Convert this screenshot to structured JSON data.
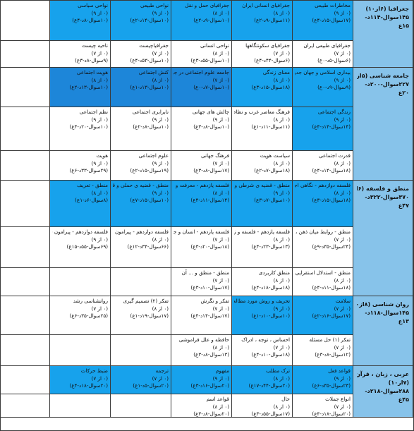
{
  "colors": {
    "highlight": "#17a2ec",
    "highlight_dark": "#1d86d9",
    "header": "#87c3ea",
    "grid_line": "#3a3a3a"
  },
  "headers": [
    {
      "lines": [
        "جغرافیا (۶از۱۰)",
        "۱۴۵سوال-۱۱۴د-",
        "۱۵ع"
      ]
    },
    {
      "lines": [
        "جامعه شناسی (۵از۱۰)",
        "۲۲۷سوال-۲۰۰د-",
        "۲۰ع"
      ]
    },
    {
      "lines": [
        "منطق و فلسفه (۶از۱۰)",
        "۳۷۰سوال-۳۲۲د-",
        "۴۷ع"
      ]
    },
    {
      "lines": [
        "روان شناسی (۸از۱۰)",
        "۱۴۵سوال-۱۱۸د-",
        "۱۳ع"
      ]
    },
    {
      "lines": [
        "عربی ، زبان ، قرآن",
        "(۷از۱۰)",
        "۲۸۸سوال-۲۱۸د-",
        "۴۵ع"
      ]
    }
  ],
  "rows": [
    [
      "مخاطرات طبیعی|(۰ از ۹)|(۱۷سوال-۱۵د-۴ع)",
      "جغرافیای انسانی ایران|(۰ از ۸)|(۱۱سوال-۹د-۲ع)",
      "جغرافیای حمل و نقل|(۰ از ۸)|(۱۰سوال-۹د-۲ع)",
      "نواحی طبیعی|(۰ از ۹)|(۱۰سوال-۱۴د-۲ع)",
      "نواحی سیاسی|(۰ از ۹)|(۱۰سوال-۸د-۴ع)"
    ],
    [
      "جغرافیای طبیعی ایران|(۰ از ۷)|(۶سوال-۵د-۰ع)",
      "جغرافیای سکونتگاهها|(۰ از ۷)|(۶سوال-۴۴د-۴ع)",
      "نواحی انسانی|(۰ از ۸)|(۱۰سوال-۵۵د-۳ع)",
      "جغرافیاچیست|(۰ از ۷)|(۱۰سوال-۵۳د-۴ع)",
      "ناحیه چیست|(۰ از ۷)|(۹سوال-۸د-۳ع)"
    ],
    [
      "بیداری اسلامی و جهان جدید|(۰ از ۹)|(۹سوال-۹د-۰ع)",
      "معنای زندگی|(۰ از ۸)|(۱۸سوال-۱۵د-۳ع)",
      "جامعه علوم اجتماعی در جهان اسلام|(۰ از ۷)|(۱۰سوال-۷د-۰ع)",
      "کنش اجتماعی|(۰ از ۸)|(۱۰سوال-۱۳د-۱ع)",
      "هویت اجتماعی|(۰ از ۸)|(۱۰سوال-۱۳د-۲ع)"
    ],
    [
      "زندگی اجتماعی|(۰ از ۹)|(۱۴سوال-۱۴د-۴ع)",
      "فرهنگ معاصر غرب و نظام نوین جهانی|(۰ از ۸)|(۱۱سوال-۱۱د-۱ع)",
      "چالش های جهانی|(۰ از ۹)|(۱۰سوال-۸د-۳ع)",
      "نابرابری اجتماعی|(۰ از ۹)|(۱۰سوال-۸د-۲ع)",
      "نظم اجتماعی|(۰ از ۹)|(۱۰سوال-۲۰د-۴ع)"
    ],
    [
      "قدرت اجتماعی|(۰ از ۸)|(۱۸سوال-۱۴د-۴ع)",
      "سیاست هویت|(۰ از ۸)|(۱۸سوال-۷د-۲ع)",
      "فرهنگ جهانی|(۰ از ۷)|(۱۷سوال-۸د-۳ع)",
      "علوم اجتماعی|(۰ از ۹)|(۱۹سوال-۱۵د-۲ع)",
      "هویت|(۰ از ۹)|(۲۹سوال-۳۳د-۶ع)"
    ],
    [
      "فلسفه دوازدهم - نگاهی اجمالی به سیر فلسفه در جهان اسلام|(۰ از ۸)|(۱۸سوال-۱۵د-۳ع)",
      "منطق - قضیه ی شرطی و قیاس استثنایی|(۰ از ۹)|(۱۰سوال-۷د-۳ع)",
      "فلسفه یازدهم - معرفت و شناخت|(۰ از ۸)|(۱۴سوال-۱۱د-۴ع)",
      "منطق - قضیه ی حملی و قیاس اقترانی|(۰ از ۹)|(۱۰سوال-۱۵د-۷ع)",
      "منطق - تعریف|(۰ از ۸)|(۸سوال-۶د-۱ع)"
    ],
    [
      "منطق - روابط میان ذهن ، زبان و خارج|(۰ از ۷)|(۲۴سوال-۳۵د-۹ع)",
      "فلسفه یازدهم - فلسفه و زندگی آن|(۰ از ۸)|(۱۳سوال-۲۳د-۴ع)",
      "فلسفه یازدهم - انسان و جهان|(۰ از ۷)|(۱۸سوال-۲۰د-۳ع)",
      "فلسفه دوازدهم - پیرامون واقعیت و هستی|(۰ از ۸)|(۶۶سوال-۳۴د-۱۲ع)",
      "فلسفه دوازدهم - پیرامون خدا و عقل|(۰ از ۹)|(۶۹سوال-۵۵د-۱۵ع)"
    ],
    [
      "منطق - استدلال استقرایی|(۰ از ۸)|(۱۸سوال-۱۱د-۴ع)",
      "منطق کاربردی|(۰ از ۸)|(۱۸سوال-۱۸د-۴ع)",
      "منطق - منطق و ... آن|(۰ از ۷)|(۱۷سوال-۱۰د-۳ع)",
      "",
      ""
    ],
    [
      "سلامت|(۰ از ۷)|(۱۷سوال-۱۶د-۲ع)",
      "تحریف و روش مورد مطالعه|(۰ از ۹)|(۱۰سوال-۱۰د-۱ع)",
      "تفکر و نگرش|(۰ از ۷)|(۱۷سوال-۱۴د-۴ع)",
      "تفکر (۲) تصمیم گیری|(۰ از ۸)|(۱۷سوال-۱۹د-۱ع)",
      "روانشناسی رشد|(۰ از ۷)|(۲۵سوال-۳۵د-۶ع)"
    ],
    [
      "تفکر (۱) حل مسئله|(۰ از ۷)|(۱۲سوال-۸د-۳ع)",
      "احساس ، توجه ، ادراک|(۰ از ۷)|(۱۸سوال-۱۰د-۴ع)",
      "حافظه و علل فراموشی|(۰ از ۸)|(۱۳سوال-۸د-۳ع)",
      "",
      ""
    ],
    [
      "قواعد فعل|(۰ از ۹)|(۲۳سوال-۳۵د-۶ع)",
      "ترک مطلب|(۰ از ۸)|(۲۰سوال-۴۴د-۱۷ع)",
      "مفهوم|(۰ از ۹)|(۲۰سوال-۱۶د-۳ع)",
      "ترجمه|(۰ از ۷)|(۲۰سوال-۵د-۱ع)",
      "ضبط حرکات|(۰ از ۷)|(۲۰سوال-۱۸د-۴ع)"
    ],
    [
      "انواع جملات|(۰ از ۷)|(۲۰سوال-۱۸د-۴ع)",
      "حال|(۰ از ۸)|(۱۷سوال-۵۵د-۳ع)",
      "قواعد اسم|(۰ از ۸)|(۲۰سوال-۸د-۳ع)",
      "",
      ""
    ]
  ]
}
